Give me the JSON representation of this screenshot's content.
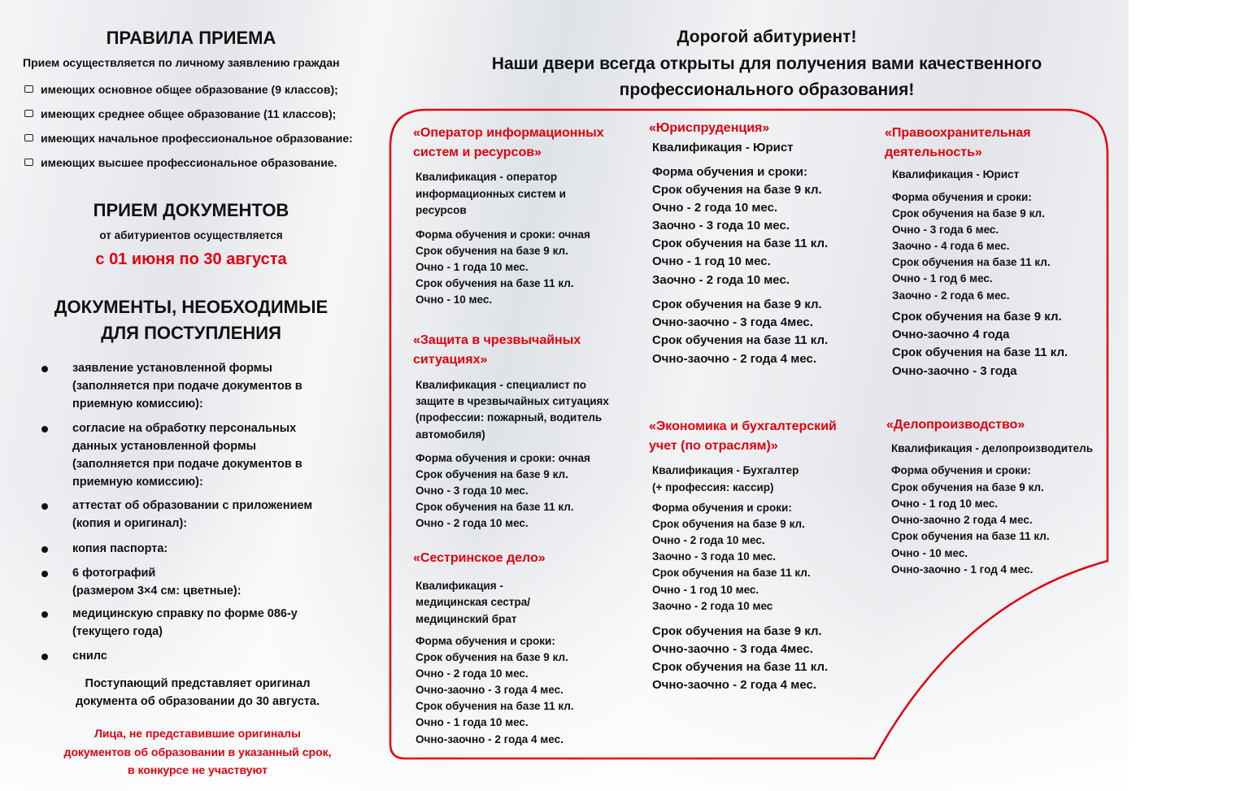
{
  "header": {
    "lines": [
      "Дорогой абитуриент!",
      "Наши двери всегда открыты для получения вами качественного",
      "профессионального образования!"
    ]
  },
  "left": {
    "rules_title": "ПРАВИЛА ПРИЕМА",
    "rules_intro": "Прием осуществляется по личному заявлению граждан",
    "rules_items": [
      "имеющих основное общее образование (9 классов);",
      "имеющих среднее общее образование (11 классов);",
      "имеющих начальное профессиональное образование:",
      "имеющих высшее профессиональное образование."
    ],
    "intake_title": "ПРИЕМ ДОКУМЕНТОВ",
    "intake_sub": "от абитуриентов осуществляется",
    "intake_dates": "с 01 июня по 30 августа",
    "docs_title": [
      "ДОКУМЕНТЫ, НЕОБХОДИМЫЕ",
      "ДЛЯ ПОСТУПЛЕНИЯ"
    ],
    "docs_items": [
      [
        "заявление установленной формы",
        "(заполняется при подаче документов в",
        "приемную комиссию):"
      ],
      [
        "согласие на обработку персональных",
        "данных установленной формы",
        "(заполняется при подаче документов в",
        "приемную комиссию):"
      ],
      [
        "аттестат об образовании с приложением",
        "(копия и оригинал):"
      ],
      [
        "копия паспорта:"
      ],
      [
        "6 фотографий",
        "(размером 3×4 см: цветные):"
      ],
      [
        "медицинскую справку по форме 086-у",
        "(текущего года)"
      ],
      [
        "снилс"
      ]
    ],
    "note": [
      "Поступающий представляет оригинал",
      "документа об образовании до 30 августа."
    ],
    "warning": [
      "Лица, не представившие оригиналы",
      "документов об образовании в указанный срок,",
      "в конкурсе не участвуют"
    ]
  },
  "programs": [
    {
      "title": [
        "«Оператор информационных",
        "систем и ресурсов»"
      ],
      "qualification": [
        "Квалификация - оператор",
        "информационных систем и",
        "ресурсов"
      ],
      "schedule": [
        "Форма обучения и сроки: очная",
        "Срок обучения на базе 9 кл.",
        "Очно - 1 года 10 мес.",
        "Срок обучения на базе 11 кл.",
        "Очно - 10 мес."
      ],
      "schedule2": []
    },
    {
      "title": [
        "«Защита в чрезвычайных",
        "ситуациях»"
      ],
      "qualification": [
        "Квалификация - специалист по",
        "защите в чрезвычайных ситуациях",
        "(профессии: пожарный, водитель",
        "автомобиля)"
      ],
      "schedule": [
        "Форма обучения и сроки: очная",
        "Срок обучения на базе 9 кл.",
        "Очно - 3 года 10 мес.",
        "Срок обучения на базе 11 кл.",
        "Очно - 2 года 10 мес."
      ],
      "schedule2": []
    },
    {
      "title": [
        "«Сестринское дело»"
      ],
      "qualification": [
        "Квалификация -",
        "медицинская сестра/",
        "медицинский брат"
      ],
      "schedule": [
        "Форма обучения и сроки:",
        "Срок обучения на базе 9 кл.",
        "Очно - 2 года 10 мес.",
        "Очно-заочно - 3 года 4 мес.",
        "Срок обучения на базе 11 кл.",
        "Очно - 1 года 10 мес.",
        "Очно-заочно - 2 года 4 мес."
      ],
      "schedule2": []
    },
    {
      "title": [
        "«Юриспруденция»"
      ],
      "qualification": [
        "Квалификация - Юрист"
      ],
      "schedule": [
        "Форма обучения и сроки:",
        "Срок обучения на базе 9 кл.",
        "Очно - 2 года 10 мес.",
        "Заочно - 3 года 10 мес.",
        "Срок обучения на базе 11 кл.",
        "Очно - 1 год 10 мес.",
        "Заочно - 2 года 10 мес."
      ],
      "schedule2": [
        "Срок обучения на базе 9 кл.",
        "Очно-заочно - 3 года 4мес.",
        "Срок обучения на базе 11 кл.",
        "Очно-заочно - 2 года 4 мес."
      ]
    },
    {
      "title": [
        "«Экономика и бухгалтерский",
        "учет (по отраслям)»"
      ],
      "qualification": [
        "Квалификация - Бухгалтер",
        "(+ профессия: кассир)"
      ],
      "schedule": [
        "Форма обучения и сроки:",
        "Срок обучения на базе 9 кл.",
        "Очно - 2 года 10 мес.",
        "Заочно - 3 года 10 мес.",
        "Срок обучения на базе 11 кл.",
        "Очно - 1 год 10 мес.",
        "Заочно - 2 года 10 мес"
      ],
      "schedule2": [
        "Срок обучения на базе 9 кл.",
        "Очно-заочно - 3 года 4мес.",
        "Срок обучения на базе 11 кл.",
        "Очно-заочно - 2 года 4 мес."
      ]
    },
    {
      "title": [
        "«Правоохранительная",
        "деятельность»"
      ],
      "qualification": [
        "Квалификация - Юрист"
      ],
      "schedule": [
        "Форма обучения и сроки:",
        "Срок обучения на базе 9 кл.",
        "Очно - 3 года 6 мес.",
        "Заочно - 4 года 6 мес.",
        "Срок обучения на базе 11 кл.",
        "Очно - 1 год 6 мес.",
        "Заочно - 2 года 6 мес."
      ],
      "schedule2": [
        "Срок обучения на базе 9 кл.",
        "Очно-заочно 4 года",
        "Срок обучения на базе 11 кл.",
        "Очно-заочно - 3 года"
      ]
    },
    {
      "title": [
        "«Делопроизводство»"
      ],
      "qualification": [
        "Квалификация - делопроизводитель"
      ],
      "schedule": [
        "Форма обучения и сроки:",
        "Срок обучения на базе 9 кл.",
        "Очно - 1 год 10 мес.",
        "Очно-заочно 2 года 4 мес.",
        "Срок обучения на базе 11 кл.",
        "Очно - 10 мес.",
        "Очно-заочно - 1 год 4 мес."
      ],
      "schedule2": []
    }
  ],
  "colors": {
    "accent": "#e3000f",
    "text": "#111111"
  }
}
